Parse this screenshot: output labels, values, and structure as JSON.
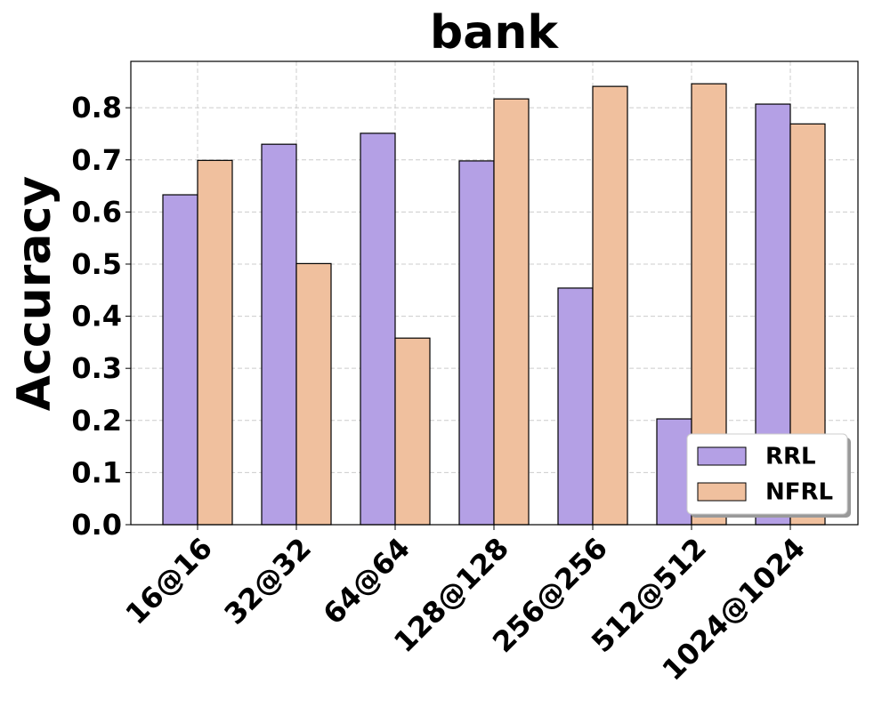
{
  "chart_data": {
    "type": "bar",
    "title": "bank",
    "y_label": "Accuracy",
    "categories": [
      "16@16",
      "32@32",
      "64@64",
      "128@128",
      "256@256",
      "512@512",
      "1024@1024"
    ],
    "series": [
      {
        "name": "RRL",
        "color": "#b4a0e5",
        "values": [
          0.633,
          0.73,
          0.751,
          0.698,
          0.454,
          0.203,
          0.807
        ]
      },
      {
        "name": "NFRL",
        "color": "#f0c09e",
        "values": [
          0.699,
          0.501,
          0.358,
          0.817,
          0.841,
          0.846,
          0.769
        ]
      }
    ],
    "ylim": [
      0,
      0.889
    ],
    "yticks": [
      {
        "value": 0,
        "label": "0.0"
      },
      0.1,
      0.2,
      0.3,
      0.4,
      0.5,
      0.6,
      0.7,
      0.8
    ],
    "grid": true,
    "legend": "lower right"
  }
}
